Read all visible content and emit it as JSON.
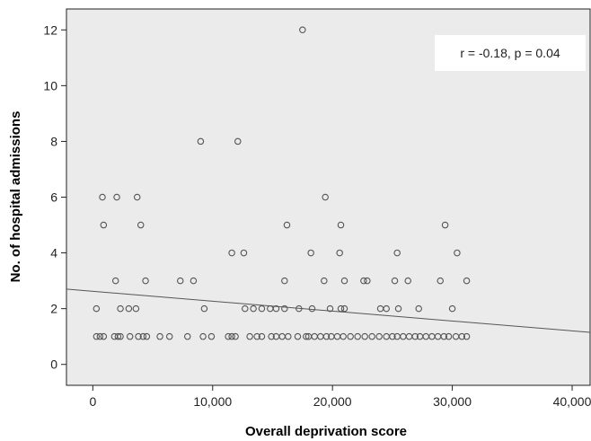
{
  "chart_data": {
    "type": "scatter",
    "title": "",
    "xlabel": "Overall deprivation score",
    "ylabel": "No. of hospital admissions",
    "xlim": [
      -2200,
      41500
    ],
    "ylim": [
      -0.75,
      12.75
    ],
    "xticks": [
      0,
      10000,
      20000,
      30000,
      40000
    ],
    "xtick_labels": [
      "0",
      "10,000",
      "20,000",
      "30,000",
      "40,000"
    ],
    "yticks": [
      0,
      2,
      4,
      6,
      8,
      10,
      12
    ],
    "ytick_labels": [
      "0",
      "2",
      "4",
      "6",
      "8",
      "10",
      "12"
    ],
    "grid": false,
    "legend": "none",
    "annotation": "r = -0.18, p = 0.04",
    "fit_line": {
      "x": [
        -2200,
        41500
      ],
      "y": [
        2.7,
        1.15
      ]
    },
    "colors": {
      "background": "#ebebeb",
      "marker": "#555555",
      "line": "#555555"
    },
    "points": [
      {
        "x": 300,
        "y": 1
      },
      {
        "x": 600,
        "y": 1
      },
      {
        "x": 900,
        "y": 1
      },
      {
        "x": 1800,
        "y": 1
      },
      {
        "x": 2100,
        "y": 1
      },
      {
        "x": 2300,
        "y": 1
      },
      {
        "x": 3100,
        "y": 1
      },
      {
        "x": 3800,
        "y": 1
      },
      {
        "x": 4200,
        "y": 1
      },
      {
        "x": 4500,
        "y": 1
      },
      {
        "x": 5600,
        "y": 1
      },
      {
        "x": 6400,
        "y": 1
      },
      {
        "x": 7900,
        "y": 1
      },
      {
        "x": 9200,
        "y": 1
      },
      {
        "x": 9900,
        "y": 1
      },
      {
        "x": 11300,
        "y": 1
      },
      {
        "x": 11600,
        "y": 1
      },
      {
        "x": 11900,
        "y": 1
      },
      {
        "x": 13100,
        "y": 1
      },
      {
        "x": 13700,
        "y": 1
      },
      {
        "x": 14100,
        "y": 1
      },
      {
        "x": 14900,
        "y": 1
      },
      {
        "x": 15300,
        "y": 1
      },
      {
        "x": 15800,
        "y": 1
      },
      {
        "x": 16300,
        "y": 1
      },
      {
        "x": 17100,
        "y": 1
      },
      {
        "x": 17800,
        "y": 1
      },
      {
        "x": 18000,
        "y": 1
      },
      {
        "x": 18500,
        "y": 1
      },
      {
        "x": 19000,
        "y": 1
      },
      {
        "x": 19500,
        "y": 1
      },
      {
        "x": 19900,
        "y": 1
      },
      {
        "x": 20400,
        "y": 1
      },
      {
        "x": 20900,
        "y": 1
      },
      {
        "x": 21500,
        "y": 1
      },
      {
        "x": 22100,
        "y": 1
      },
      {
        "x": 22700,
        "y": 1
      },
      {
        "x": 23300,
        "y": 1
      },
      {
        "x": 23900,
        "y": 1
      },
      {
        "x": 24500,
        "y": 1
      },
      {
        "x": 25000,
        "y": 1
      },
      {
        "x": 25400,
        "y": 1
      },
      {
        "x": 25900,
        "y": 1
      },
      {
        "x": 26400,
        "y": 1
      },
      {
        "x": 26900,
        "y": 1
      },
      {
        "x": 27300,
        "y": 1
      },
      {
        "x": 27800,
        "y": 1
      },
      {
        "x": 28300,
        "y": 1
      },
      {
        "x": 28800,
        "y": 1
      },
      {
        "x": 29300,
        "y": 1
      },
      {
        "x": 29700,
        "y": 1
      },
      {
        "x": 30300,
        "y": 1
      },
      {
        "x": 30800,
        "y": 1
      },
      {
        "x": 31200,
        "y": 1
      },
      {
        "x": 300,
        "y": 2
      },
      {
        "x": 3000,
        "y": 2
      },
      {
        "x": 3600,
        "y": 2
      },
      {
        "x": 2300,
        "y": 2
      },
      {
        "x": 9300,
        "y": 2
      },
      {
        "x": 12700,
        "y": 2
      },
      {
        "x": 13400,
        "y": 2
      },
      {
        "x": 14100,
        "y": 2
      },
      {
        "x": 14800,
        "y": 2
      },
      {
        "x": 15300,
        "y": 2
      },
      {
        "x": 16000,
        "y": 2
      },
      {
        "x": 17200,
        "y": 2
      },
      {
        "x": 18300,
        "y": 2
      },
      {
        "x": 19800,
        "y": 2
      },
      {
        "x": 20700,
        "y": 2
      },
      {
        "x": 21000,
        "y": 2
      },
      {
        "x": 24000,
        "y": 2
      },
      {
        "x": 24500,
        "y": 2
      },
      {
        "x": 25500,
        "y": 2
      },
      {
        "x": 27200,
        "y": 2
      },
      {
        "x": 30000,
        "y": 2
      },
      {
        "x": 1900,
        "y": 3
      },
      {
        "x": 4400,
        "y": 3
      },
      {
        "x": 7300,
        "y": 3
      },
      {
        "x": 8400,
        "y": 3
      },
      {
        "x": 16000,
        "y": 3
      },
      {
        "x": 19300,
        "y": 3
      },
      {
        "x": 21000,
        "y": 3
      },
      {
        "x": 22600,
        "y": 3
      },
      {
        "x": 22900,
        "y": 3
      },
      {
        "x": 25200,
        "y": 3
      },
      {
        "x": 26300,
        "y": 3
      },
      {
        "x": 29000,
        "y": 3
      },
      {
        "x": 31200,
        "y": 3
      },
      {
        "x": 11600,
        "y": 4
      },
      {
        "x": 12600,
        "y": 4
      },
      {
        "x": 18200,
        "y": 4
      },
      {
        "x": 20600,
        "y": 4
      },
      {
        "x": 25400,
        "y": 4
      },
      {
        "x": 30400,
        "y": 4
      },
      {
        "x": 900,
        "y": 5
      },
      {
        "x": 4000,
        "y": 5
      },
      {
        "x": 16200,
        "y": 5
      },
      {
        "x": 20700,
        "y": 5
      },
      {
        "x": 29400,
        "y": 5
      },
      {
        "x": 800,
        "y": 6
      },
      {
        "x": 2000,
        "y": 6
      },
      {
        "x": 3700,
        "y": 6
      },
      {
        "x": 19400,
        "y": 6
      },
      {
        "x": 9000,
        "y": 8
      },
      {
        "x": 12100,
        "y": 8
      },
      {
        "x": 17500,
        "y": 12
      }
    ]
  }
}
